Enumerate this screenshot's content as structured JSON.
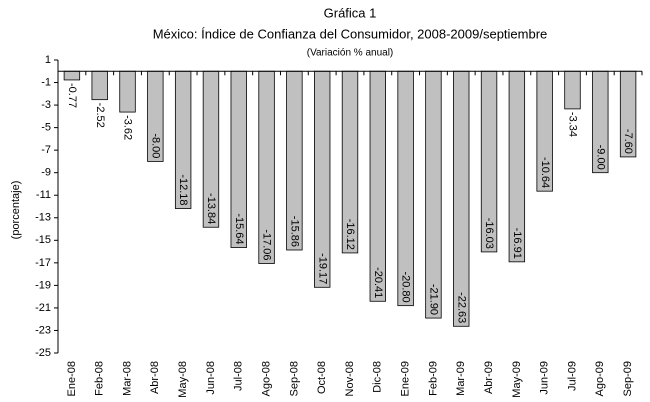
{
  "chart_data": {
    "type": "bar",
    "title": "Gráfica 1",
    "subtitle": "México: Índice de Confianza del Consumidor, 2008-2009/septiembre",
    "note": "(Variación % anual)",
    "y_label": "(porcentaje)",
    "categories": [
      "Ene-08",
      "Feb-08",
      "Mar-08",
      "Abr-08",
      "May-08",
      "Jun-08",
      "Jul-08",
      "Ago-08",
      "Sep-08",
      "Oct-08",
      "Nov-08",
      "Dic-08",
      "Ene-09",
      "Feb-09",
      "Mar-09",
      "Abr-09",
      "May-09",
      "Jun-09",
      "Jul-09",
      "Ago-09",
      "Sep-09"
    ],
    "values": [
      -0.77,
      -2.52,
      -3.62,
      -8.0,
      -12.18,
      -13.84,
      -15.64,
      -17.06,
      -15.86,
      -19.17,
      -16.12,
      -20.41,
      -20.8,
      -21.9,
      -22.63,
      -16.03,
      -16.91,
      -10.64,
      -3.34,
      -9.0,
      -7.6
    ],
    "value_labels": [
      "-0.77",
      "-2.52",
      "-3.62",
      "-8.00",
      "-12.18",
      "-13.84",
      "-15.64",
      "-17.06",
      "-15.86",
      "-19.17",
      "-16.12",
      "-20.41",
      "-20.80",
      "-21.90",
      "-22.63",
      "-16.03",
      "-16.91",
      "-10.64",
      "-3.34",
      "-9.00",
      "-7.60"
    ],
    "color": "#c0c0c0",
    "ylim": [
      -25,
      1
    ],
    "yticks": [
      1,
      -1,
      -3,
      -5,
      -7,
      -9,
      -11,
      -13,
      -15,
      -17,
      -19,
      -21,
      -23,
      -25
    ]
  }
}
